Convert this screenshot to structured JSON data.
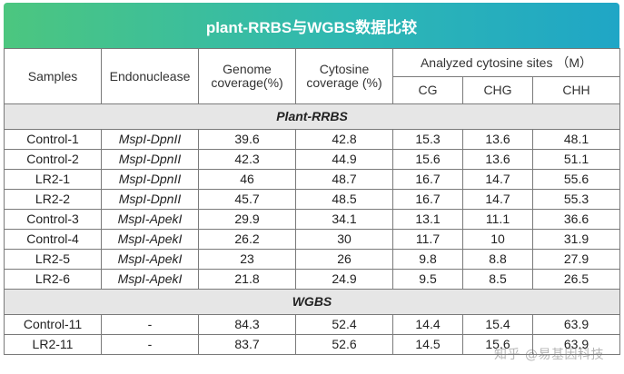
{
  "title": "plant-RRBS与WGBS数据比较",
  "headers": {
    "samples": "Samples",
    "endonuclease": "Endonuclease",
    "genome_coverage": "Genome coverage(%)",
    "cytosine_coverage": "Cytosine coverage (%)",
    "analyzed": "Analyzed cytosine sites （M）",
    "cg": "CG",
    "chg": "CHG",
    "chh": "CHH"
  },
  "sections": [
    {
      "name": "Plant-RRBS",
      "rows": [
        {
          "sample": "Control-1",
          "enzyme": "MspI-DpnII",
          "genome": "39.6",
          "cytosine": "42.8",
          "cg": "15.3",
          "chg": "13.6",
          "chh": "48.1"
        },
        {
          "sample": "Control-2",
          "enzyme": "MspI-DpnII",
          "genome": "42.3",
          "cytosine": "44.9",
          "cg": "15.6",
          "chg": "13.6",
          "chh": "51.1"
        },
        {
          "sample": "LR2-1",
          "enzyme": "MspI-DpnII",
          "genome": "46",
          "cytosine": "48.7",
          "cg": "16.7",
          "chg": "14.7",
          "chh": "55.6"
        },
        {
          "sample": "LR2-2",
          "enzyme": "MspI-DpnII",
          "genome": "45.7",
          "cytosine": "48.5",
          "cg": "16.7",
          "chg": "14.7",
          "chh": "55.3"
        },
        {
          "sample": "Control-3",
          "enzyme": "MspI-ApekI",
          "genome": "29.9",
          "cytosine": "34.1",
          "cg": "13.1",
          "chg": "11.1",
          "chh": "36.6"
        },
        {
          "sample": "Control-4",
          "enzyme": "MspI-ApekI",
          "genome": "26.2",
          "cytosine": "30",
          "cg": "11.7",
          "chg": "10",
          "chh": "31.9"
        },
        {
          "sample": "LR2-5",
          "enzyme": "MspI-ApekI",
          "genome": "23",
          "cytosine": "26",
          "cg": "9.8",
          "chg": "8.8",
          "chh": "27.9"
        },
        {
          "sample": "LR2-6",
          "enzyme": "MspI-ApekI",
          "genome": "21.8",
          "cytosine": "24.9",
          "cg": "9.5",
          "chg": "8.5",
          "chh": "26.5"
        }
      ]
    },
    {
      "name": "WGBS",
      "rows": [
        {
          "sample": "Control-11",
          "enzyme": "-",
          "genome": "84.3",
          "cytosine": "52.4",
          "cg": "14.4",
          "chg": "15.4",
          "chh": "63.9"
        },
        {
          "sample": "LR2-11",
          "enzyme": "-",
          "genome": "83.7",
          "cytosine": "52.6",
          "cg": "14.5",
          "chg": "15.6",
          "chh": "63.9"
        }
      ]
    }
  ],
  "watermark": "知乎 @易基因科技"
}
